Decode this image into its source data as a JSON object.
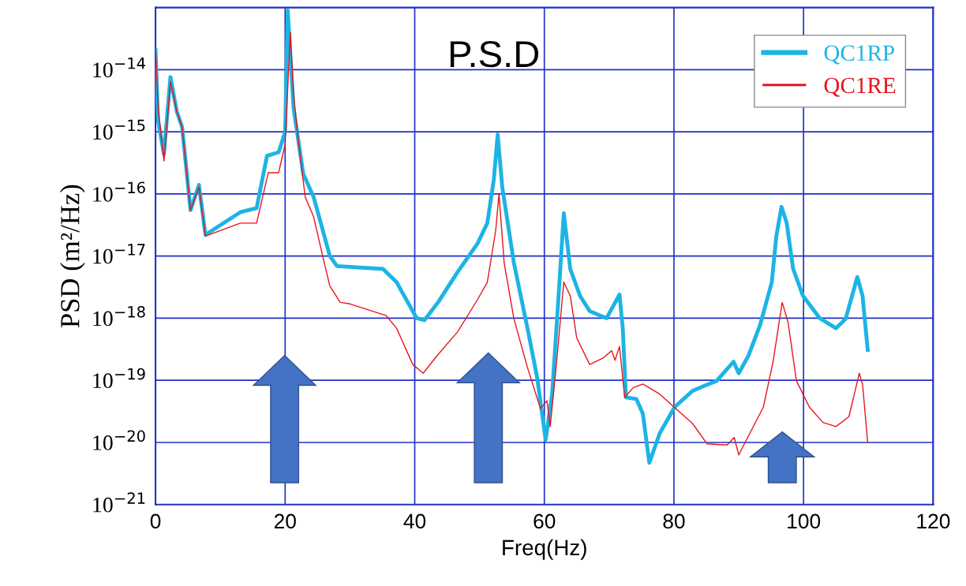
{
  "chart_data": {
    "type": "line",
    "title": "P.S.D",
    "xlabel": "Freq(Hz)",
    "ylabel": "PSD (m²/Hz)",
    "log": "y",
    "grid": true,
    "legend": "top right",
    "marker": "none",
    "line_style": "solid",
    "xlim": [
      0,
      120
    ],
    "xticks": [
      0,
      20,
      40,
      60,
      80,
      100,
      120
    ],
    "ylim": [
      1e-21,
      1e-13
    ],
    "yticks": [
      {
        "value": 1e-21,
        "label": "10$^{−21}$"
      },
      {
        "value": 1e-20,
        "label": "10$^{−20}$"
      },
      {
        "value": 1e-19,
        "label": "10$^{−19}$"
      },
      {
        "value": 1e-18,
        "label": "10$^{−18}$"
      },
      {
        "value": 1e-17,
        "label": "10$^{−17}$"
      },
      {
        "value": 1e-16,
        "label": "10$^{−16}$"
      },
      {
        "value": 1e-15,
        "label": "10$^{−15}$"
      },
      {
        "value": 1e-14,
        "label": "10$^{−14}$"
      }
    ],
    "series": [
      {
        "name": "QC1RP",
        "color": "#1cb4e4",
        "x": [
          0,
          0.4,
          1.3,
          2.3,
          3.3,
          4.1,
          5.4,
          6.7,
          7.7,
          13.1,
          15.6,
          17.2,
          19.0,
          20.0,
          20.4,
          21.3,
          22.8,
          24.4,
          26.9,
          28.0,
          35.1,
          37.2,
          40.3,
          41.5,
          43.6,
          46.6,
          49.7,
          51.2,
          52.2,
          52.8,
          53.5,
          55.3,
          57.4,
          58.9,
          60.2,
          61.2,
          62.2,
          63.0,
          64.0,
          65.5,
          67.0,
          69.6,
          71.6,
          72.1,
          72.6,
          74.2,
          75.2,
          76.2,
          77.8,
          80.1,
          82.9,
          84.6,
          86.6,
          89.2,
          90.0,
          91.5,
          93.3,
          95.1,
          95.8,
          96.6,
          97.4,
          98.4,
          99.9,
          102.5,
          105.0,
          106.5,
          108.3,
          109.1,
          109.9
        ],
        "values": [
          2.1e-14,
          1.5e-15,
          4.4e-16,
          7.6e-15,
          2.1e-15,
          1.2e-15,
          5.5e-17,
          1.4e-16,
          2.2e-17,
          5.1e-17,
          5.9e-17,
          4.1e-16,
          4.7e-16,
          1e-15,
          9e-14,
          2.4e-15,
          2.1e-16,
          8.9e-17,
          1e-17,
          6.9e-18,
          6.2e-18,
          3.8e-18,
          1e-18,
          9.3e-19,
          1.8e-18,
          5.5e-18,
          1.6e-17,
          3.4e-17,
          1.7e-16,
          9.1e-16,
          1.3e-16,
          7.8e-18,
          6.9e-19,
          1.1e-19,
          1.1e-20,
          6e-20,
          2.3e-18,
          4.9e-17,
          6.2e-18,
          2.3e-18,
          1.3e-18,
          1e-18,
          2.4e-18,
          6.9e-19,
          5.3e-20,
          5e-20,
          2.9e-20,
          4.7e-21,
          1.4e-20,
          3.7e-20,
          6.8e-20,
          8.1e-20,
          9.8e-20,
          2e-19,
          1.3e-19,
          2.5e-19,
          7.8e-19,
          3.8e-18,
          2.1e-17,
          6.2e-17,
          3.4e-17,
          6.2e-18,
          2.3e-18,
          1e-18,
          6.9e-19,
          9.8e-19,
          4.6e-18,
          2.3e-18,
          3.1e-19
        ]
      },
      {
        "name": "QC1RE",
        "color": "#e8141c",
        "x": [
          0,
          0.4,
          1.3,
          2.3,
          3.3,
          4.1,
          5.4,
          6.7,
          7.7,
          13.1,
          15.6,
          17.4,
          19.0,
          20.0,
          20.8,
          21.3,
          22.1,
          23.1,
          24.4,
          25.9,
          26.9,
          28.5,
          30.0,
          35.6,
          37.2,
          39.7,
          41.3,
          43.6,
          46.6,
          49.7,
          51.2,
          52.5,
          53.0,
          53.8,
          55.3,
          57.4,
          59.4,
          60.4,
          60.9,
          61.9,
          63.0,
          64.0,
          65.0,
          67.0,
          69.1,
          70.4,
          70.9,
          71.6,
          72.4,
          73.7,
          75.2,
          77.8,
          82.9,
          85.1,
          88.2,
          89.3,
          90.0,
          91.7,
          93.8,
          95.3,
          96.7,
          97.6,
          98.9,
          100.9,
          103.0,
          105.0,
          107.0,
          108.6,
          109.1,
          109.9
        ],
        "values": [
          2.1e-14,
          2.4e-15,
          3.4e-16,
          6.4e-15,
          2.1e-15,
          1.2e-15,
          5.5e-17,
          1.3e-16,
          2.1e-17,
          3.4e-17,
          3.4e-17,
          2.2e-16,
          2.2e-16,
          6.3e-16,
          4e-14,
          3.9e-15,
          6.3e-16,
          8.9e-17,
          4.3e-17,
          8.9e-18,
          3.3e-18,
          1.8e-18,
          1.7e-18,
          1.1e-18,
          6.9e-19,
          1.8e-19,
          1.3e-19,
          2.6e-19,
          6e-19,
          2e-18,
          3.8e-18,
          2.6e-17,
          1e-16,
          7.8e-18,
          9.8e-19,
          1.6e-19,
          3.5e-20,
          4.7e-20,
          1.8e-20,
          2e-19,
          3.8e-18,
          2.3e-18,
          4.8e-19,
          1.8e-19,
          2.3e-19,
          3e-19,
          2.1e-19,
          3.5e-19,
          5.3e-20,
          7.6e-20,
          8.7e-20,
          6e-20,
          2e-20,
          9.5e-21,
          9.1e-21,
          1.2e-20,
          6.3e-21,
          1.4e-20,
          3.7e-20,
          2e-19,
          1.8e-18,
          8.7e-19,
          9.8e-20,
          3.7e-20,
          2.1e-20,
          1.8e-20,
          2.6e-20,
          1.3e-19,
          8.7e-20,
          1e-20
        ]
      }
    ]
  }
}
